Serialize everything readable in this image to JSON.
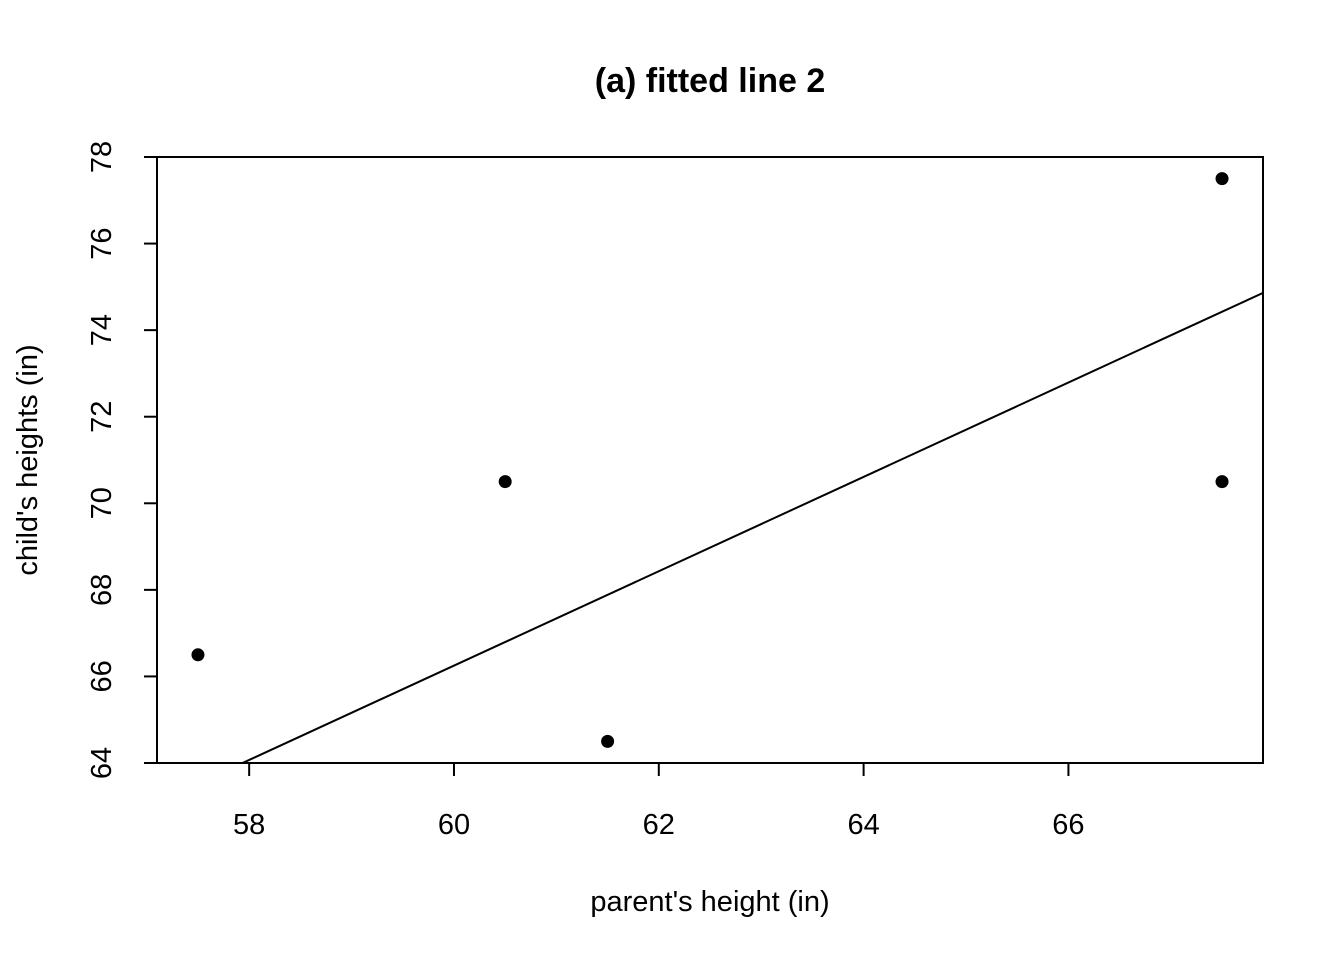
{
  "chart_data": {
    "type": "scatter",
    "title": "(a) fitted line 2",
    "xlabel": "parent's height (in)",
    "ylabel": "child's heights (in)",
    "xlim": [
      57.1,
      67.9
    ],
    "ylim": [
      64,
      78
    ],
    "xticks": [
      58,
      60,
      62,
      64,
      66
    ],
    "yticks": [
      64,
      66,
      68,
      70,
      72,
      74,
      76,
      78
    ],
    "grid": false,
    "points": [
      {
        "x": 57.5,
        "y": 66.5
      },
      {
        "x": 60.5,
        "y": 70.5
      },
      {
        "x": 61.5,
        "y": 64.5
      },
      {
        "x": 67.5,
        "y": 77.5
      },
      {
        "x": 67.5,
        "y": 70.5
      }
    ],
    "fitted_line": {
      "intercept": 0.85,
      "slope": 1.09
    }
  }
}
